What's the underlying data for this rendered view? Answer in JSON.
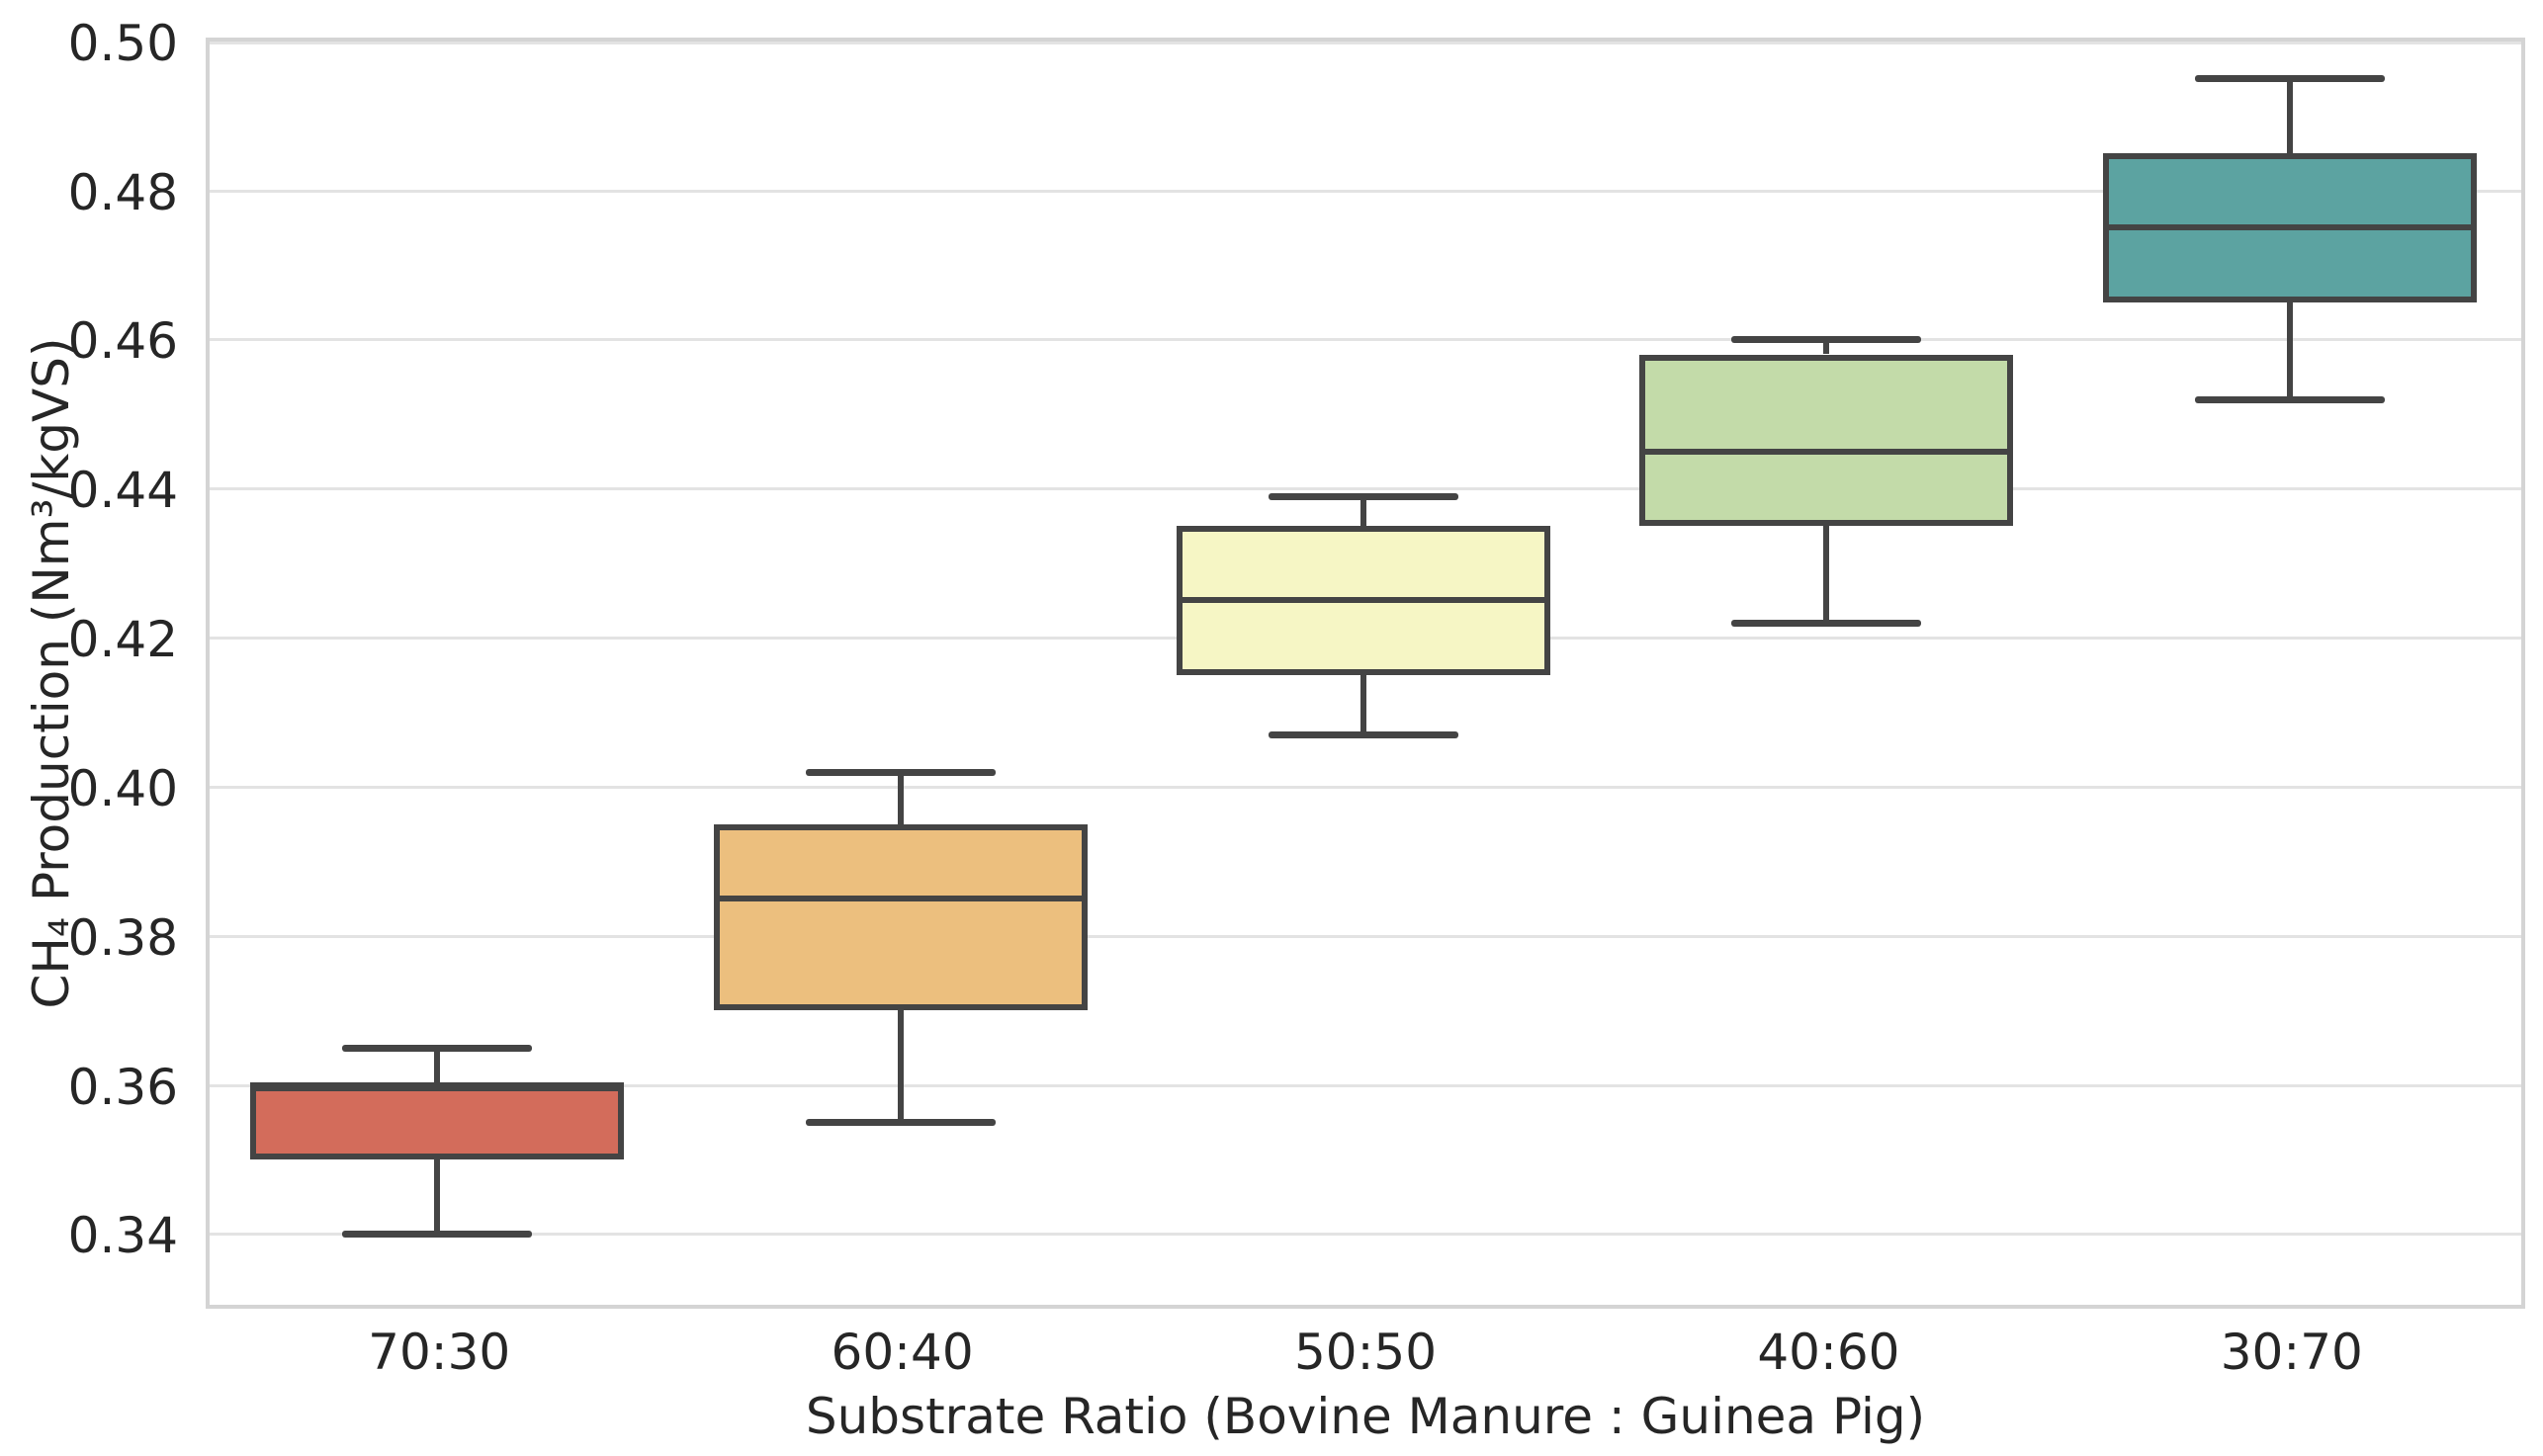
{
  "chart_data": {
    "type": "boxplot",
    "title": "",
    "xlabel": "Substrate Ratio (Bovine Manure : Guinea Pig)",
    "ylabel": "CH₄ Production (Nm³/kgVS)",
    "categories": [
      "70:30",
      "60:40",
      "50:50",
      "40:60",
      "30:70"
    ],
    "series_unit": "Nm³/kgVS",
    "groups": [
      {
        "label": "70:30",
        "whisker_min": 0.34,
        "q1": 0.35,
        "median": 0.36,
        "q3": 0.36,
        "whisker_max": 0.365,
        "fill_color": "#d36c5b"
      },
      {
        "label": "60:40",
        "whisker_min": 0.355,
        "q1": 0.37,
        "median": 0.385,
        "q3": 0.395,
        "whisker_max": 0.402,
        "fill_color": "#ecbf7e"
      },
      {
        "label": "50:50",
        "whisker_min": 0.407,
        "q1": 0.415,
        "median": 0.425,
        "q3": 0.435,
        "whisker_max": 0.439,
        "fill_color": "#f6f6c5"
      },
      {
        "label": "40:60",
        "whisker_min": 0.422,
        "q1": 0.435,
        "median": 0.445,
        "q3": 0.458,
        "whisker_max": 0.46,
        "fill_color": "#c3dba9"
      },
      {
        "label": "30:70",
        "whisker_min": 0.452,
        "q1": 0.465,
        "median": 0.475,
        "q3": 0.485,
        "whisker_max": 0.495,
        "fill_color": "#5ca3a1"
      }
    ],
    "ylim": [
      0.3305,
      0.5005
    ],
    "yticks": [
      0.34,
      0.36,
      0.38,
      0.4,
      0.42,
      0.44,
      0.46,
      0.48,
      0.5
    ],
    "ytick_decimals": 2,
    "grid": true,
    "legend": false,
    "styles": {
      "edge_color": "#444444",
      "grid_color": "#e3e3e3",
      "spine_color": "#d4d4d4",
      "text_color": "#262626",
      "background_color": "#ffffff"
    }
  }
}
